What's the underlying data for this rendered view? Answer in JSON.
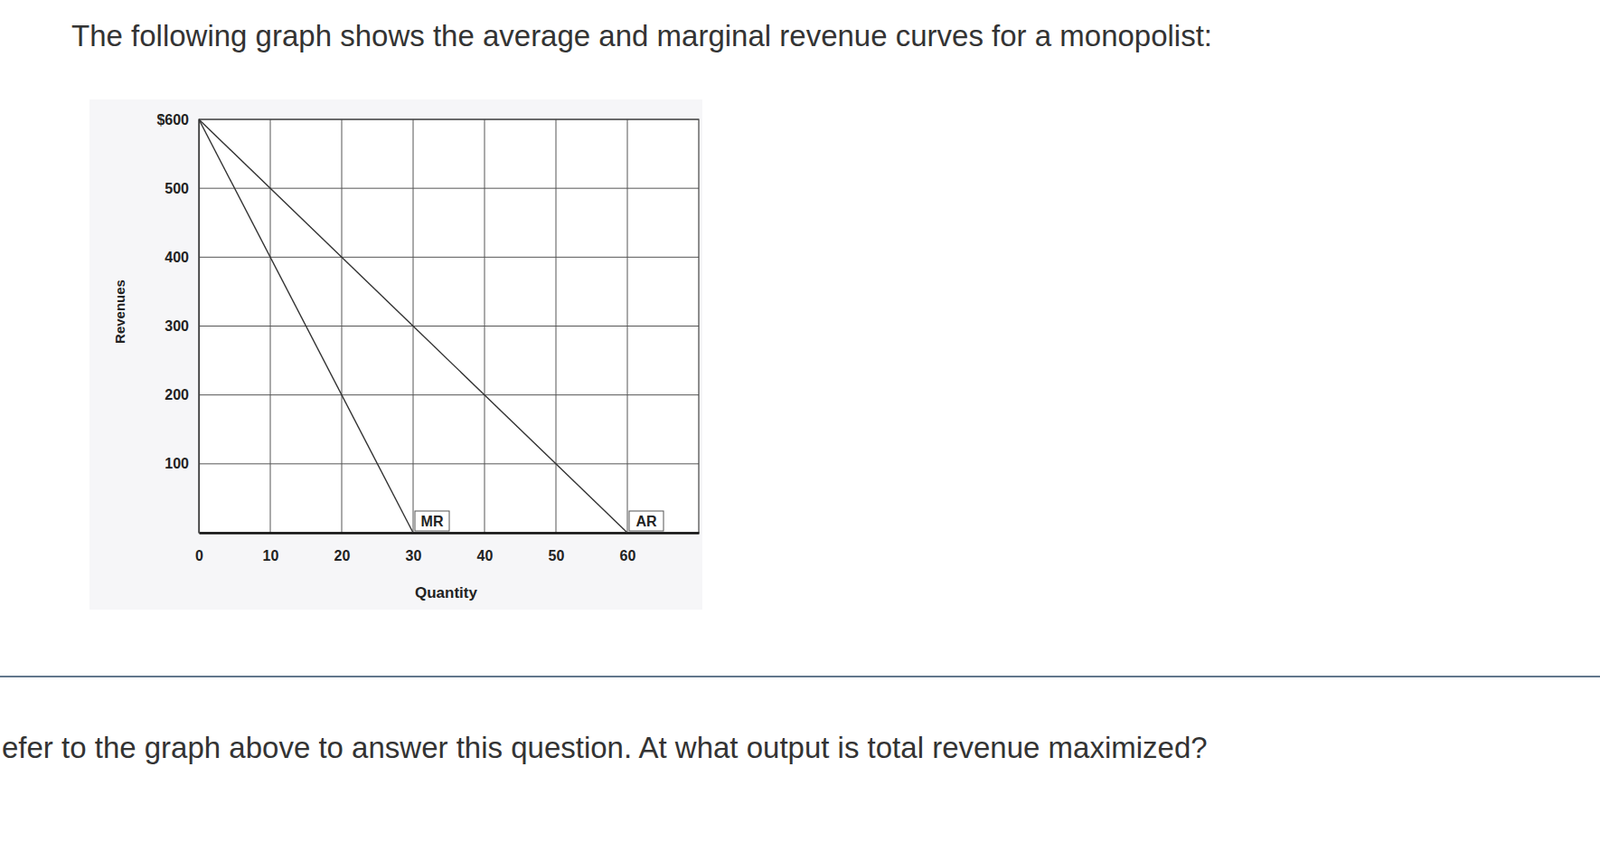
{
  "intro": "The following graph shows the average and marginal revenue curves for a monopolist:",
  "question": "efer to the graph above to answer this question. At what output is total revenue maximized?",
  "chart_data": {
    "type": "line",
    "x_label": "Quantity",
    "y_label": "Revenues",
    "x": [
      0,
      30,
      60
    ],
    "series": [
      {
        "name": "MR",
        "color": "#333333",
        "values": [
          600,
          0,
          null
        ]
      },
      {
        "name": "AR",
        "color": "#333333",
        "values": [
          600,
          300,
          0
        ]
      }
    ],
    "xlim": [
      0,
      70
    ],
    "ylim": [
      0,
      600
    ],
    "xticks": [
      0,
      10,
      20,
      30,
      40,
      50,
      60
    ],
    "yticks": [
      100,
      200,
      300,
      400,
      500,
      {
        "value": 600,
        "label": "$600"
      }
    ],
    "grid": true
  }
}
